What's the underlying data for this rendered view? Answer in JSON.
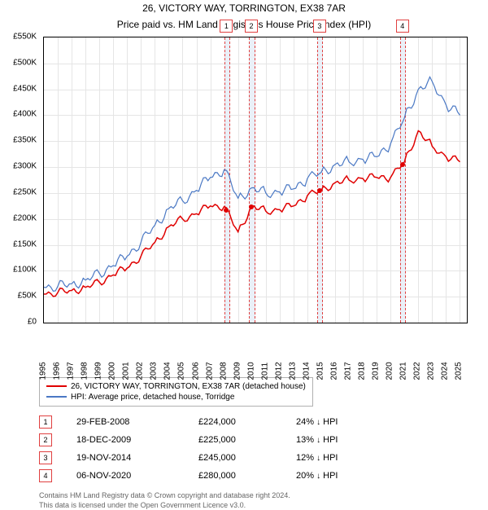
{
  "title": "26, VICTORY WAY, TORRINGTON, EX38 7AR",
  "subtitle": "Price paid vs. HM Land Registry's House Price Index (HPI)",
  "chart": {
    "type": "line",
    "background_color": "#ffffff",
    "grid_color": "#e5e5e5",
    "border_color": "#000000",
    "y_axis": {
      "min": 0,
      "max": 550000,
      "tick_step": 50000,
      "labels": [
        "£0",
        "£50K",
        "£100K",
        "£150K",
        "£200K",
        "£250K",
        "£300K",
        "£350K",
        "£400K",
        "£450K",
        "£500K",
        "£550K"
      ]
    },
    "x_axis": {
      "min": 1995,
      "max": 2025.5,
      "labels": [
        "1995",
        "1996",
        "1997",
        "1998",
        "1999",
        "2000",
        "2001",
        "2002",
        "2003",
        "2004",
        "2005",
        "2006",
        "2007",
        "2008",
        "2009",
        "2010",
        "2011",
        "2012",
        "2013",
        "2014",
        "2015",
        "2016",
        "2017",
        "2018",
        "2019",
        "2020",
        "2021",
        "2022",
        "2023",
        "2024",
        "2025"
      ]
    },
    "series": [
      {
        "label": "26, VICTORY WAY, TORRINGTON, EX38 7AR (detached house)",
        "color": "#e00000",
        "line_width": 1.5,
        "points": [
          [
            1995,
            55
          ],
          [
            1996,
            58
          ],
          [
            1997,
            62
          ],
          [
            1998,
            68
          ],
          [
            1999,
            78
          ],
          [
            2000,
            92
          ],
          [
            2001,
            105
          ],
          [
            2002,
            128
          ],
          [
            2003,
            155
          ],
          [
            2004,
            185
          ],
          [
            2005,
            200
          ],
          [
            2006,
            210
          ],
          [
            2007,
            225
          ],
          [
            2008,
            224
          ],
          [
            2009,
            175
          ],
          [
            2010,
            225
          ],
          [
            2011,
            215
          ],
          [
            2012,
            218
          ],
          [
            2013,
            225
          ],
          [
            2014,
            245
          ],
          [
            2015,
            255
          ],
          [
            2016,
            270
          ],
          [
            2017,
            275
          ],
          [
            2018,
            278
          ],
          [
            2019,
            280
          ],
          [
            2020,
            280
          ],
          [
            2021,
            310
          ],
          [
            2022,
            370
          ],
          [
            2023,
            340
          ],
          [
            2024,
            320
          ],
          [
            2025,
            310
          ]
        ]
      },
      {
        "label": "HPI: Average price, detached house, Torridge",
        "color": "#4a78c4",
        "line_width": 1.2,
        "points": [
          [
            1995,
            68
          ],
          [
            1996,
            70
          ],
          [
            1997,
            75
          ],
          [
            1998,
            82
          ],
          [
            1999,
            95
          ],
          [
            2000,
            110
          ],
          [
            2001,
            128
          ],
          [
            2002,
            155
          ],
          [
            2003,
            188
          ],
          [
            2004,
            220
          ],
          [
            2005,
            235
          ],
          [
            2006,
            255
          ],
          [
            2007,
            280
          ],
          [
            2008,
            295
          ],
          [
            2009,
            240
          ],
          [
            2010,
            260
          ],
          [
            2011,
            250
          ],
          [
            2012,
            252
          ],
          [
            2013,
            258
          ],
          [
            2014,
            278
          ],
          [
            2015,
            290
          ],
          [
            2016,
            305
          ],
          [
            2017,
            310
          ],
          [
            2018,
            315
          ],
          [
            2019,
            320
          ],
          [
            2020,
            345
          ],
          [
            2021,
            395
          ],
          [
            2022,
            450
          ],
          [
            2023,
            465
          ],
          [
            2024,
            420
          ],
          [
            2025,
            400
          ]
        ]
      }
    ],
    "bands": [
      {
        "x": 2008.16,
        "width": 0.3,
        "marker": "1"
      },
      {
        "x": 2009.96,
        "width": 0.3,
        "marker": "2"
      },
      {
        "x": 2014.88,
        "width": 0.3,
        "marker": "3"
      },
      {
        "x": 2020.85,
        "width": 0.3,
        "marker": "4"
      }
    ],
    "sale_dots_series_index": 0
  },
  "legend": {
    "items": [
      {
        "color": "#e00000",
        "label": "26, VICTORY WAY, TORRINGTON, EX38 7AR (detached house)"
      },
      {
        "color": "#4a78c4",
        "label": "HPI: Average price, detached house, Torridge"
      }
    ]
  },
  "sales": [
    {
      "marker": "1",
      "date": "29-FEB-2008",
      "price": "£224,000",
      "diff": "24%",
      "arrow": "↓",
      "suffix": "HPI"
    },
    {
      "marker": "2",
      "date": "18-DEC-2009",
      "price": "£225,000",
      "diff": "13%",
      "arrow": "↓",
      "suffix": "HPI"
    },
    {
      "marker": "3",
      "date": "19-NOV-2014",
      "price": "£245,000",
      "diff": "12%",
      "arrow": "↓",
      "suffix": "HPI"
    },
    {
      "marker": "4",
      "date": "06-NOV-2020",
      "price": "£280,000",
      "diff": "20%",
      "arrow": "↓",
      "suffix": "HPI"
    }
  ],
  "footer": {
    "line1": "Contains HM Land Registry data © Crown copyright and database right 2024.",
    "line2": "This data is licensed under the Open Government Licence v3.0."
  }
}
